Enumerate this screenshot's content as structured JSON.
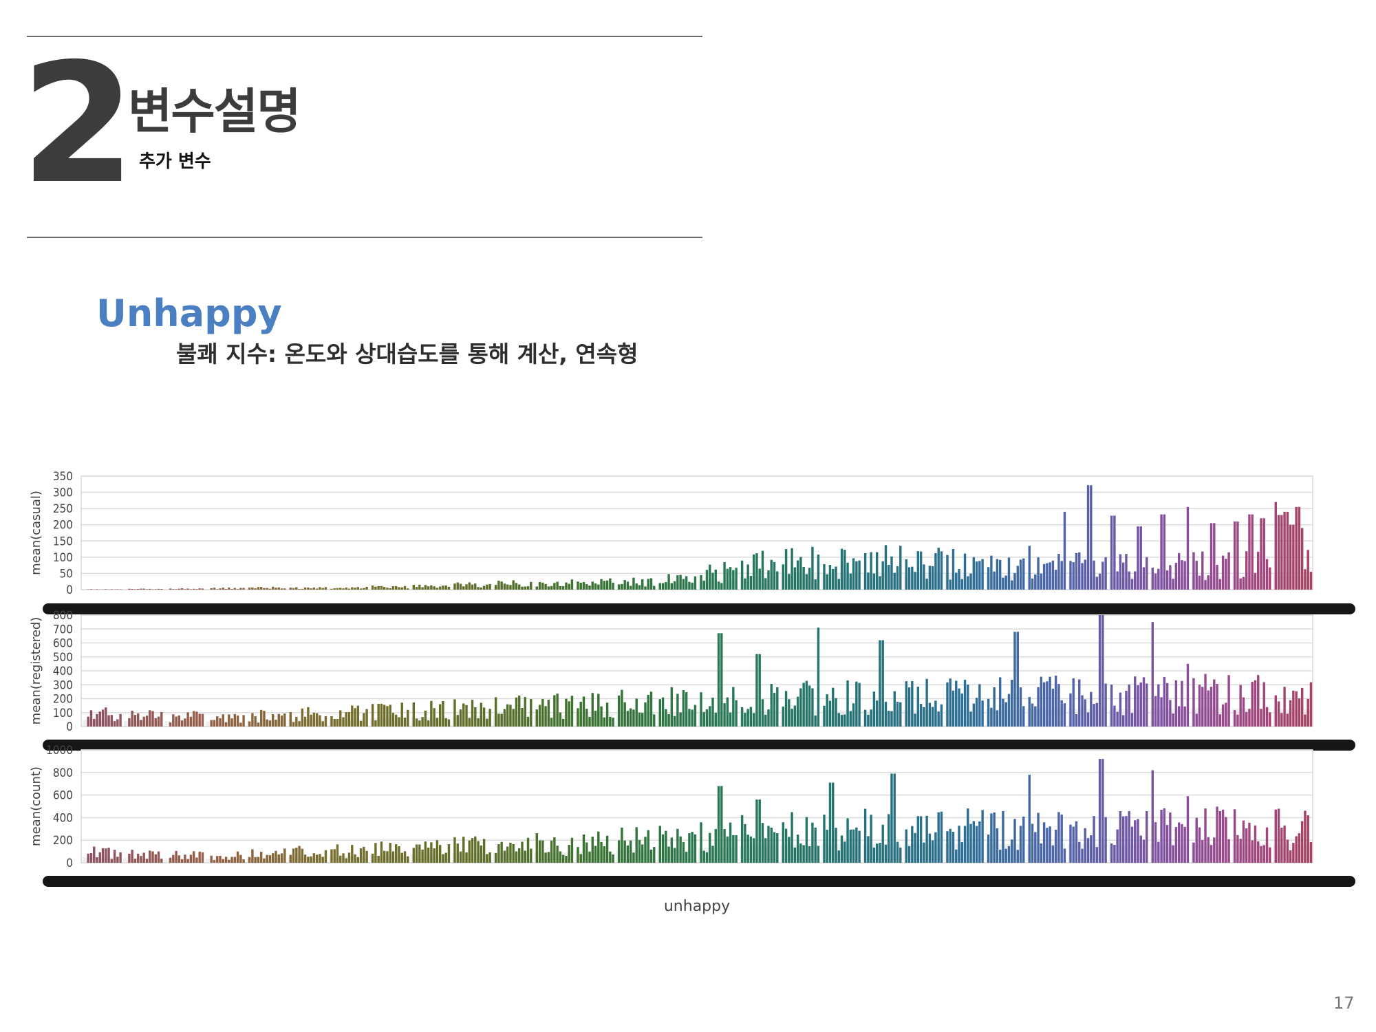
{
  "header": {
    "number": "2",
    "title": "변수설명",
    "subtitle": "추가 변수"
  },
  "variable": {
    "name": "Unhappy",
    "description": "불쾌 지수: 온도와 상대습도를 통해 계산, 연속형"
  },
  "page_number": "17",
  "chart_data": [
    {
      "type": "bar",
      "ylabel": "mean(casual)",
      "xlabel": "",
      "ylim": [
        0,
        350
      ],
      "yticks": [
        0,
        50,
        100,
        150,
        200,
        250,
        300,
        350
      ],
      "grid": true,
      "profile": [
        1,
        2,
        3,
        4,
        6,
        5,
        6,
        8,
        10,
        14,
        18,
        20,
        22,
        26,
        30,
        55,
        75,
        85,
        90,
        90,
        85,
        85,
        80,
        78,
        75,
        72,
        72,
        74,
        75,
        80
      ],
      "spikes": [
        [
          0.93,
          95
        ],
        [
          0.77,
          135
        ],
        [
          0.8,
          240
        ],
        [
          0.82,
          322
        ],
        [
          0.84,
          228
        ],
        [
          0.86,
          195
        ],
        [
          0.88,
          232
        ],
        [
          0.9,
          255
        ],
        [
          0.92,
          205
        ],
        [
          0.95,
          232
        ],
        [
          0.97,
          270
        ],
        [
          0.99,
          255
        ],
        [
          0.985,
          200
        ],
        [
          0.94,
          210
        ],
        [
          0.96,
          220
        ],
        [
          0.98,
          240
        ],
        [
          0.991,
          190
        ],
        [
          0.975,
          230
        ],
        [
          0.987,
          185
        ]
      ]
    },
    {
      "type": "bar",
      "ylabel": "mean(registered)",
      "xlabel": "",
      "ylim": [
        0,
        800
      ],
      "yticks": [
        0,
        100,
        200,
        300,
        400,
        500,
        600,
        700,
        800
      ],
      "grid": true,
      "profile": [
        90,
        75,
        70,
        65,
        80,
        90,
        95,
        110,
        120,
        135,
        140,
        150,
        165,
        175,
        185,
        195,
        210,
        215,
        210,
        205,
        215,
        220,
        225,
        230,
        228,
        225,
        230,
        240,
        235,
        225
      ],
      "spikes": [
        [
          0.52,
          670
        ],
        [
          0.55,
          520
        ],
        [
          0.6,
          710
        ],
        [
          0.65,
          620
        ],
        [
          0.76,
          680
        ],
        [
          0.83,
          800
        ],
        [
          0.87,
          750
        ],
        [
          0.9,
          450
        ]
      ]
    },
    {
      "type": "bar",
      "ylabel": "mean(count)",
      "xlabel": "unhappy",
      "ylim": [
        0,
        1000
      ],
      "yticks": [
        0,
        200,
        400,
        600,
        800,
        1000
      ],
      "grid": true,
      "profile": [
        90,
        75,
        70,
        65,
        85,
        95,
        105,
        120,
        135,
        150,
        160,
        170,
        185,
        200,
        215,
        240,
        270,
        290,
        300,
        300,
        300,
        305,
        305,
        310,
        305,
        300,
        305,
        315,
        310,
        300
      ],
      "spikes": [
        [
          0.52,
          680
        ],
        [
          0.55,
          560
        ],
        [
          0.61,
          710
        ],
        [
          0.66,
          790
        ],
        [
          0.77,
          780
        ],
        [
          0.83,
          920
        ],
        [
          0.87,
          820
        ],
        [
          0.9,
          590
        ]
      ]
    }
  ]
}
